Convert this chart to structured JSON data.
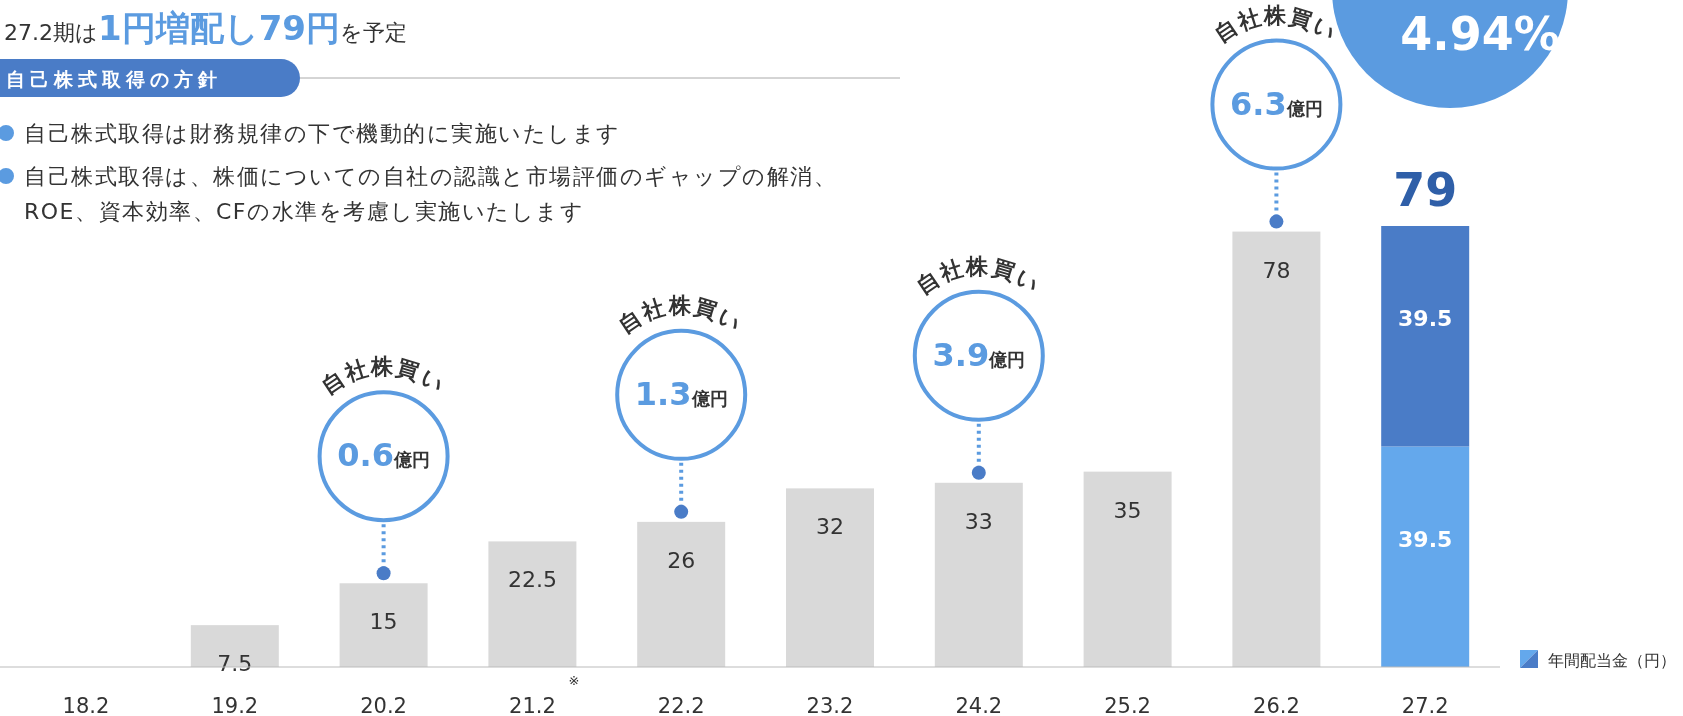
{
  "chart_data": {
    "type": "bar",
    "stacked": true,
    "data_labels": true,
    "legend": "bottom right",
    "title": "27.2期は**1円増配し79円**を予定",
    "subtitle": "自己株式取得の方針",
    "categories": [
      "18.2",
      "19.2",
      "20.2",
      "21.2",
      "22.2",
      "23.2",
      "24.2",
      "25.2",
      "26.2",
      "27.2"
    ],
    "series": [
      {
        "name": "年間配当金（円）",
        "colors": [
          null,
          "#d9d9d9",
          "#d9d9d9",
          "#d9d9d9",
          "#d9d9d9",
          "#d9d9d9",
          "#d9d9d9",
          "#d9d9d9",
          "#d9d9d9",
          "#64a8ec"
        ],
        "values": [
          null,
          7.5,
          15,
          22.5,
          26,
          32,
          33,
          35,
          78,
          39.5
        ]
      },
      {
        "color": "#4a7cc7",
        "values": [
          null,
          null,
          null,
          null,
          null,
          null,
          null,
          null,
          null,
          39.5
        ]
      }
    ],
    "totals": [
      null,
      null,
      null,
      null,
      null,
      null,
      null,
      null,
      null,
      "79"
    ],
    "annotations": [
      "自己株式取得は財務規律の下で機動的に実施いたします",
      "自己株式取得は、株価についての自社の認識と市場評価のギャップの解消、ROE、資本効率、CFの水準を考慮し実施いたします",
      "4.94%",
      "※",
      "自社株買い",
      "**0.6**億円",
      "自社株買い",
      "**1.3**億円",
      "自社株買い",
      "**3.9**億円",
      "自社株買い",
      "**6.3**億円"
    ]
  }
}
